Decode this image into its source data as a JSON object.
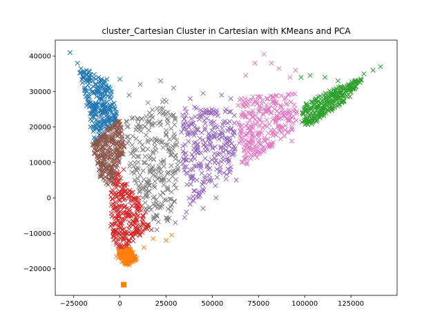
{
  "chart_data": {
    "type": "scatter",
    "title": "cluster_Cartesian Cluster in Cartesian with KMeans and PCA",
    "xlabel": "",
    "ylabel": "",
    "xlim": [
      -35000,
      150000
    ],
    "ylim": [
      -27500,
      44500
    ],
    "xticks": [
      -25000,
      0,
      25000,
      50000,
      75000,
      100000,
      125000
    ],
    "xtick_labels": [
      "−25000",
      "0",
      "25000",
      "50000",
      "75000",
      "100000",
      "125000"
    ],
    "yticks": [
      -20000,
      -10000,
      0,
      10000,
      20000,
      30000,
      40000
    ],
    "ytick_labels": [
      "−20000",
      "−10000",
      "0",
      "10000",
      "20000",
      "30000",
      "40000"
    ],
    "grid": false,
    "marker": "x",
    "series": [
      {
        "color": "#1f77b4",
        "region": [
          [
            -23000,
            38000
          ],
          [
            -13000,
            15000
          ],
          [
            -1000,
            22000
          ],
          [
            -5000,
            32000
          ]
        ],
        "points": [
          [
            -27000,
            41000
          ],
          [
            -23000,
            38000
          ],
          [
            -20000,
            34000
          ],
          [
            -10000,
            32000
          ],
          [
            -12000,
            30000
          ],
          [
            -7000,
            33500
          ],
          [
            0,
            33500
          ],
          [
            -18000,
            26000
          ],
          [
            -16000,
            20000
          ],
          [
            -8000,
            25000
          ],
          [
            -14000,
            17000
          ],
          [
            -4000,
            22000
          ]
        ]
      },
      {
        "color": "#ff7f0e",
        "region": [
          [
            -1000,
            -15000
          ],
          [
            3000,
            -19000
          ],
          [
            9000,
            -17500
          ],
          [
            5000,
            -14000
          ]
        ],
        "points": [
          [
            2000,
            -24500
          ],
          [
            -2000,
            -16500
          ],
          [
            5000,
            -19000
          ],
          [
            9000,
            -17000
          ],
          [
            13000,
            -14000
          ],
          [
            18000,
            -11500
          ],
          [
            25000,
            -12000
          ],
          [
            28000,
            -10500
          ],
          [
            1000,
            -18000
          ],
          [
            -1000,
            -17000
          ],
          [
            7000,
            -15500
          ]
        ]
      },
      {
        "color": "#2ca02c",
        "region": [
          [
            98000,
            20000
          ],
          [
            99000,
            26000
          ],
          [
            112000,
            30000
          ],
          [
            132000,
            34000
          ],
          [
            124000,
            28000
          ],
          [
            105000,
            21000
          ]
        ],
        "points": [
          [
            98000,
            34000
          ],
          [
            103000,
            34500
          ],
          [
            111000,
            34000
          ],
          [
            118000,
            33000
          ],
          [
            132000,
            35000
          ],
          [
            137000,
            36000
          ],
          [
            141000,
            37000
          ],
          [
            100000,
            22000
          ],
          [
            106000,
            28000
          ],
          [
            115000,
            29000
          ],
          [
            126000,
            31000
          ],
          [
            108000,
            24000
          ]
        ]
      },
      {
        "color": "#d62728",
        "region": [
          [
            -6000,
            3000
          ],
          [
            -4000,
            -12000
          ],
          [
            0,
            -14500
          ],
          [
            9000,
            -12000
          ],
          [
            16000,
            -8000
          ],
          [
            12000,
            -2000
          ],
          [
            4000,
            4000
          ],
          [
            -2000,
            8000
          ],
          [
            -5000,
            2000
          ]
        ],
        "points": [
          [
            -3000,
            7000
          ],
          [
            2000,
            8000
          ],
          [
            10000,
            0
          ],
          [
            14000,
            -4000
          ],
          [
            17000,
            -9000
          ],
          [
            0,
            -13000
          ],
          [
            -5000,
            -8000
          ],
          [
            5000,
            -5000
          ],
          [
            8000,
            -1500
          ],
          [
            1000,
            -10000
          ],
          [
            -3000,
            -2000
          ]
        ]
      },
      {
        "color": "#9467bd",
        "region": [
          [
            33000,
            26000
          ],
          [
            62000,
            25000
          ],
          [
            63000,
            12000
          ],
          [
            58000,
            5000
          ],
          [
            48000,
            2000
          ],
          [
            38000,
            -2000
          ],
          [
            34000,
            8000
          ],
          [
            33000,
            20000
          ]
        ],
        "points": [
          [
            38000,
            28000
          ],
          [
            45000,
            29500
          ],
          [
            55000,
            29000
          ],
          [
            60000,
            28000
          ],
          [
            40000,
            14000
          ],
          [
            49000,
            15000
          ],
          [
            59000,
            13000
          ],
          [
            36000,
            -4000
          ],
          [
            45000,
            -3000
          ],
          [
            52000,
            0
          ],
          [
            63000,
            5000
          ],
          [
            35000,
            -5500
          ],
          [
            40000,
            2000
          ],
          [
            30000,
            -7000
          ]
        ]
      },
      {
        "color": "#8c564b",
        "region": [
          [
            -15000,
            15000
          ],
          [
            -6000,
            20000
          ],
          [
            0,
            22000
          ],
          [
            3000,
            13000
          ],
          [
            -2000,
            8000
          ],
          [
            -6000,
            3000
          ],
          [
            -11000,
            6000
          ]
        ],
        "points": [
          [
            -12000,
            12000
          ],
          [
            -9000,
            18000
          ],
          [
            -4000,
            16000
          ],
          [
            -1000,
            11000
          ],
          [
            -8000,
            5000
          ],
          [
            -5000,
            9000
          ],
          [
            -13000,
            15000
          ],
          [
            0,
            19000
          ]
        ]
      },
      {
        "color": "#e377c2",
        "region": [
          [
            64000,
            28000
          ],
          [
            96000,
            30000
          ],
          [
            96000,
            20000
          ],
          [
            76000,
            12000
          ],
          [
            66000,
            8000
          ],
          [
            64000,
            18000
          ]
        ],
        "points": [
          [
            73000,
            38000
          ],
          [
            78000,
            40500
          ],
          [
            82000,
            38000
          ],
          [
            86000,
            36500
          ],
          [
            68000,
            34500
          ],
          [
            92000,
            34000
          ],
          [
            95000,
            36000
          ],
          [
            76000,
            22000
          ],
          [
            84000,
            18000
          ],
          [
            66000,
            10000
          ],
          [
            71000,
            12000
          ],
          [
            88000,
            24000
          ],
          [
            93000,
            16000
          ],
          [
            80000,
            28000
          ]
        ]
      },
      {
        "color": "#7f7f7f",
        "region": [
          [
            3000,
            22000
          ],
          [
            20000,
            29000
          ],
          [
            31000,
            26000
          ],
          [
            32000,
            10000
          ],
          [
            30000,
            -4000
          ],
          [
            24000,
            -8000
          ],
          [
            16000,
            -6000
          ],
          [
            10000,
            2000
          ],
          [
            5000,
            8000
          ],
          [
            4000,
            16000
          ]
        ],
        "points": [
          [
            11000,
            32000
          ],
          [
            22000,
            33000
          ],
          [
            29000,
            31000
          ],
          [
            5000,
            29000
          ],
          [
            16000,
            24000
          ],
          [
            25000,
            18000
          ],
          [
            13000,
            10000
          ],
          [
            22000,
            8000
          ],
          [
            28000,
            -2000
          ],
          [
            20000,
            -9000
          ],
          [
            8000,
            5000
          ],
          [
            30000,
            12000
          ],
          [
            18000,
            0
          ],
          [
            4000,
            20000
          ]
        ]
      }
    ]
  }
}
